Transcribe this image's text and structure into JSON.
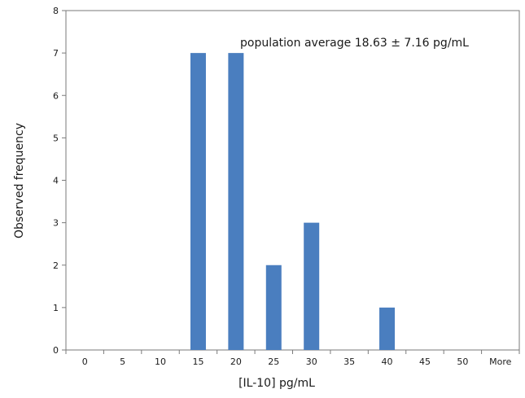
{
  "chart_data": {
    "type": "bar",
    "categories": [
      "0",
      "5",
      "10",
      "15",
      "20",
      "25",
      "30",
      "35",
      "40",
      "45",
      "50",
      "More"
    ],
    "values": [
      0,
      0,
      0,
      7,
      7,
      2,
      3,
      0,
      1,
      0,
      0,
      0
    ],
    "xlabel": "[IL-10] pg/mL",
    "ylabel": "Observed frequency",
    "ylim": [
      0,
      8
    ],
    "yticks": [
      0,
      1,
      2,
      3,
      4,
      5,
      6,
      7,
      8
    ],
    "annotation": "population average 18.63 ± 7.16 pg/mL",
    "grid": false,
    "legend": "none",
    "bar_color": "#4a7ebf",
    "axis_color": "#7a7a7a"
  }
}
